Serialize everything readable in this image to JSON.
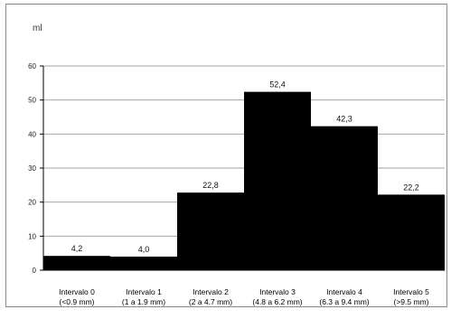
{
  "chart_data": {
    "type": "bar",
    "ylabel": "ml",
    "ylim": [
      0,
      60
    ],
    "yticks": [
      0,
      10,
      20,
      30,
      40,
      50,
      60
    ],
    "grid": true,
    "categories": [
      {
        "line1": "Intervalo 0",
        "line2": "(<0.9 mm)"
      },
      {
        "line1": "Intervalo 1",
        "line2": "(1 a 1.9 mm)"
      },
      {
        "line1": "Intervalo 2",
        "line2": "(2 a 4.7 mm)"
      },
      {
        "line1": "Intervalo 3",
        "line2": "(4.8 a 6.2 mm)"
      },
      {
        "line1": "Intervalo 4",
        "line2": "(6.3 a 9.4 mm)"
      },
      {
        "line1": "Intervalo 5",
        "line2": "(>9.5 mm)"
      }
    ],
    "values": [
      4.2,
      4.0,
      22.8,
      52.4,
      42.3,
      22.2
    ],
    "value_labels": [
      "4,2",
      "4,0",
      "22,8",
      "52,4",
      "42,3",
      "22,2"
    ],
    "bar_color": "#000000"
  }
}
